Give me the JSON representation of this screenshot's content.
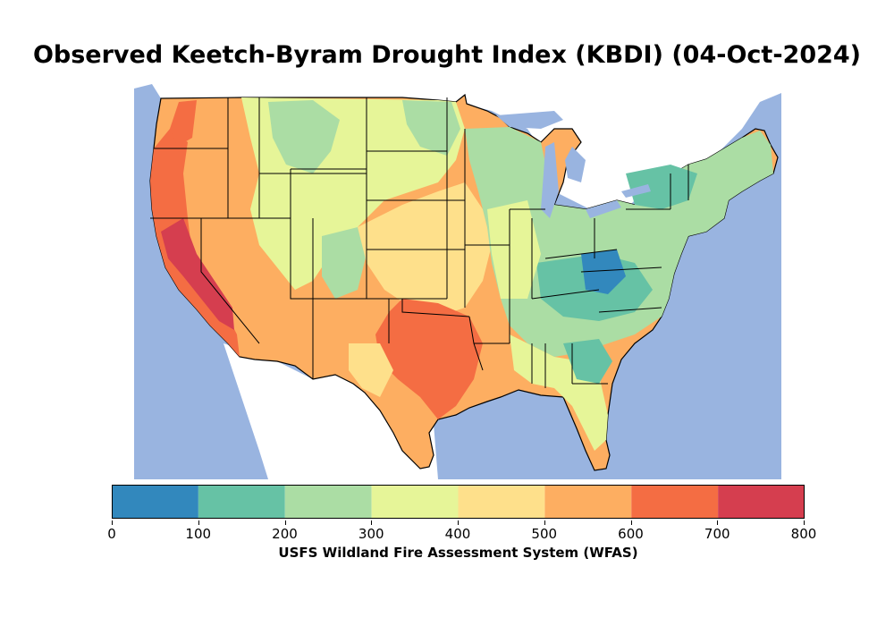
{
  "title": "Observed Keetch-Byram Drought Index (KBDI) (04-Oct-2024)",
  "colorbar": {
    "label": "USFS Wildland Fire Assessment System (WFAS)",
    "ticks": [
      "0",
      "100",
      "200",
      "300",
      "400",
      "500",
      "600",
      "700",
      "800"
    ],
    "bins": [
      {
        "min": 0,
        "max": 100,
        "color": "#3288bd"
      },
      {
        "min": 100,
        "max": 200,
        "color": "#66c2a5"
      },
      {
        "min": 200,
        "max": 300,
        "color": "#abdda4"
      },
      {
        "min": 300,
        "max": 400,
        "color": "#e6f598"
      },
      {
        "min": 400,
        "max": 500,
        "color": "#fee08b"
      },
      {
        "min": 500,
        "max": 600,
        "color": "#fdae61"
      },
      {
        "min": 600,
        "max": 700,
        "color": "#f46d43"
      },
      {
        "min": 700,
        "max": 800,
        "color": "#d53e4f"
      }
    ]
  },
  "map": {
    "ocean_color": "#99b4e0",
    "land_outside_color": "#ffffff",
    "state_line_color": "#000000"
  }
}
